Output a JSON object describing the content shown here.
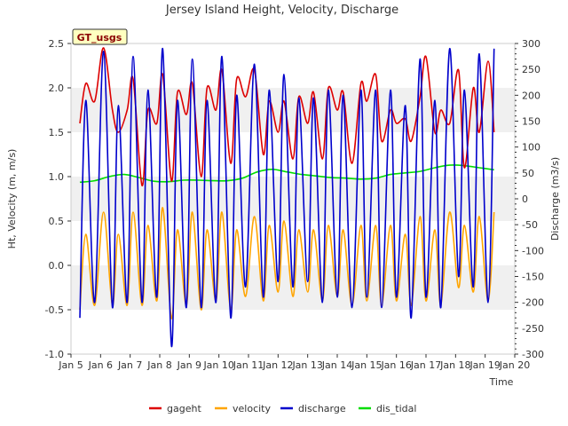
{
  "chart_data": {
    "type": "line",
    "title": "Jersey Island Height, Velocity, Discharge",
    "xlabel": "Time",
    "ylabel_left": "Ht, Velocity (m, m/s)",
    "ylabel_right": "Discharge (m3/s)",
    "badge": "GT_usgs",
    "x_ticks": [
      "Jan 5",
      "Jan 6",
      "Jan 7",
      "Jan 8",
      "Jan 9",
      "Jan 10",
      "Jan 11",
      "Jan 12",
      "Jan 13",
      "Jan 14",
      "Jan 15",
      "Jan 16",
      "Jan 17",
      "Jan 18",
      "Jan 19",
      "Jan 20"
    ],
    "x_range_days": [
      5,
      20
    ],
    "ylim_left": [
      -1.0,
      2.5
    ],
    "yticks_left": [
      "-1.0",
      "-0.5",
      "0.0",
      "0.5",
      "1.0",
      "1.5",
      "2.0",
      "2.5"
    ],
    "ylim_right": [
      -300,
      300
    ],
    "yticks_right": [
      "-300",
      "-250",
      "-200",
      "-150",
      "-100",
      "-50",
      "0",
      "50",
      "100",
      "150",
      "200",
      "250",
      "300"
    ],
    "grid": "horizontal bands",
    "legend_position": "bottom",
    "series": [
      {
        "name": "gageht",
        "color": "#dd0000",
        "axis": "left",
        "description": "semi-diurnal tide stage",
        "x": [
          5.3,
          5.5,
          5.8,
          6.1,
          6.4,
          6.6,
          6.9,
          7.1,
          7.4,
          7.6,
          7.9,
          8.1,
          8.4,
          8.6,
          8.9,
          9.1,
          9.4,
          9.6,
          9.9,
          10.1,
          10.4,
          10.6,
          10.9,
          11.2,
          11.5,
          11.7,
          12.0,
          12.2,
          12.5,
          12.7,
          13.0,
          13.2,
          13.5,
          13.7,
          14.0,
          14.2,
          14.5,
          14.8,
          15.0,
          15.3,
          15.5,
          15.8,
          16.0,
          16.3,
          16.5,
          16.8,
          17.0,
          17.3,
          17.5,
          17.8,
          18.1,
          18.3,
          18.6,
          18.8,
          19.1,
          19.3
        ],
        "values": [
          1.6,
          2.05,
          1.85,
          2.45,
          1.75,
          1.5,
          1.75,
          2.1,
          0.9,
          1.75,
          1.6,
          2.15,
          0.95,
          1.95,
          1.7,
          2.05,
          1.0,
          2.0,
          1.75,
          2.2,
          1.15,
          2.1,
          1.9,
          2.2,
          1.25,
          1.85,
          1.5,
          1.85,
          1.2,
          1.9,
          1.6,
          1.95,
          1.2,
          2.0,
          1.75,
          1.95,
          1.15,
          2.05,
          1.85,
          2.15,
          1.4,
          1.75,
          1.6,
          1.65,
          1.4,
          1.9,
          2.35,
          1.5,
          1.75,
          1.6,
          2.2,
          1.1,
          2.0,
          1.5,
          2.3,
          1.5
        ]
      },
      {
        "name": "velocity",
        "color": "#ffa500",
        "axis": "left",
        "description": "tidal velocity",
        "x": [
          5.3,
          5.5,
          5.8,
          6.1,
          6.4,
          6.6,
          6.9,
          7.1,
          7.4,
          7.6,
          7.9,
          8.1,
          8.4,
          8.6,
          8.9,
          9.1,
          9.4,
          9.6,
          9.9,
          10.1,
          10.4,
          10.6,
          10.9,
          11.2,
          11.5,
          11.7,
          12.0,
          12.2,
          12.5,
          12.7,
          13.0,
          13.2,
          13.5,
          13.7,
          14.0,
          14.2,
          14.5,
          14.8,
          15.0,
          15.3,
          15.5,
          15.8,
          16.0,
          16.3,
          16.5,
          16.8,
          17.0,
          17.3,
          17.5,
          17.8,
          18.1,
          18.3,
          18.6,
          18.8,
          19.1,
          19.3
        ],
        "values": [
          -0.5,
          0.35,
          -0.45,
          0.6,
          -0.45,
          0.35,
          -0.45,
          0.6,
          -0.45,
          0.45,
          -0.4,
          0.65,
          -0.6,
          0.4,
          -0.45,
          0.6,
          -0.5,
          0.4,
          -0.4,
          0.6,
          -0.5,
          0.4,
          -0.35,
          0.55,
          -0.4,
          0.45,
          -0.3,
          0.5,
          -0.35,
          0.4,
          -0.3,
          0.4,
          -0.4,
          0.45,
          -0.35,
          0.4,
          -0.45,
          0.45,
          -0.4,
          0.45,
          -0.45,
          0.45,
          -0.4,
          0.35,
          -0.45,
          0.55,
          -0.4,
          0.4,
          -0.45,
          0.6,
          -0.25,
          0.45,
          -0.3,
          0.55,
          -0.4,
          0.6
        ]
      },
      {
        "name": "discharge",
        "color": "#0000cc",
        "axis": "right",
        "description": "tidal discharge",
        "x": [
          5.3,
          5.5,
          5.8,
          6.1,
          6.4,
          6.6,
          6.9,
          7.1,
          7.4,
          7.6,
          7.9,
          8.1,
          8.4,
          8.6,
          8.9,
          9.1,
          9.4,
          9.6,
          9.9,
          10.1,
          10.4,
          10.6,
          10.9,
          11.2,
          11.5,
          11.7,
          12.0,
          12.2,
          12.5,
          12.7,
          13.0,
          13.2,
          13.5,
          13.7,
          14.0,
          14.2,
          14.5,
          14.8,
          15.0,
          15.3,
          15.5,
          15.8,
          16.0,
          16.3,
          16.5,
          16.8,
          17.0,
          17.3,
          17.5,
          17.8,
          18.1,
          18.3,
          18.6,
          18.8,
          19.1,
          19.3
        ],
        "values": [
          -230,
          190,
          -200,
          285,
          -210,
          180,
          -200,
          275,
          -200,
          210,
          -190,
          290,
          -285,
          190,
          -210,
          270,
          -210,
          190,
          -200,
          275,
          -230,
          200,
          -170,
          260,
          -190,
          210,
          -160,
          240,
          -170,
          195,
          -160,
          195,
          -200,
          210,
          -190,
          200,
          -210,
          210,
          -190,
          210,
          -210,
          210,
          -190,
          180,
          -230,
          270,
          -190,
          190,
          -210,
          290,
          -150,
          210,
          -170,
          280,
          -200,
          290
        ]
      },
      {
        "name": "dis_tidal",
        "color": "#00dd00",
        "axis": "right",
        "description": "tidally filtered discharge",
        "x": [
          5.3,
          5.8,
          6.3,
          6.8,
          7.3,
          7.8,
          8.3,
          8.8,
          9.3,
          9.8,
          10.3,
          10.8,
          11.3,
          11.8,
          12.3,
          12.8,
          13.3,
          13.8,
          14.3,
          14.8,
          15.3,
          15.8,
          16.3,
          16.8,
          17.3,
          17.8,
          18.3,
          18.8,
          19.3
        ],
        "values": [
          32,
          35,
          43,
          47,
          41,
          34,
          33,
          36,
          36,
          35,
          35,
          40,
          52,
          57,
          52,
          47,
          44,
          41,
          40,
          38,
          40,
          47,
          50,
          53,
          60,
          65,
          64,
          60,
          56
        ]
      }
    ]
  }
}
